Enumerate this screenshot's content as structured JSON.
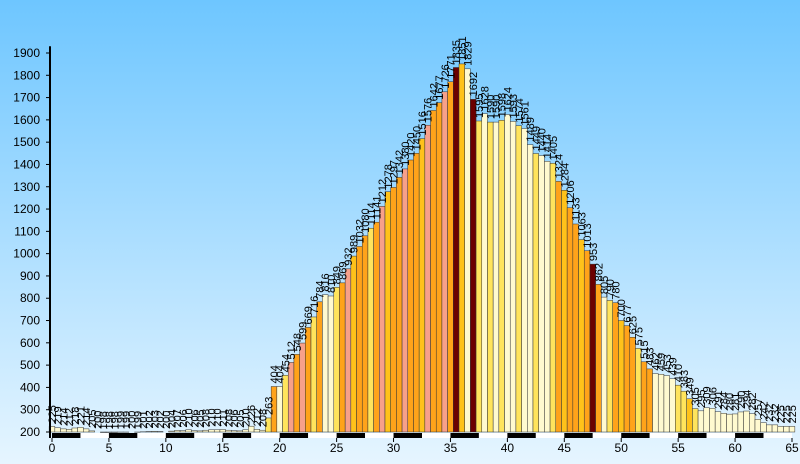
{
  "chart_data": {
    "type": "bar",
    "x": [
      0,
      0.5,
      1,
      1.5,
      2,
      2.5,
      3,
      3.5,
      4,
      4.5,
      5,
      5.5,
      6,
      6.5,
      7,
      7.5,
      8,
      8.5,
      9,
      9.5,
      10,
      10.5,
      11,
      11.5,
      12,
      12.5,
      13,
      13.5,
      14,
      14.5,
      15,
      15.5,
      16,
      16.5,
      17,
      17.5,
      18,
      18.5,
      19,
      19.5,
      20,
      20.5,
      21,
      21.5,
      22,
      22.5,
      23,
      23.5,
      24,
      24.5,
      25,
      25.5,
      26,
      26.5,
      27,
      27.5,
      28,
      28.5,
      29,
      29.5,
      30,
      30.5,
      31,
      31.5,
      32,
      32.5,
      33,
      33.5,
      34,
      34.5,
      35,
      35.5,
      36,
      36.5,
      37,
      37.5,
      38,
      38.5,
      39,
      39.5,
      40,
      40.5,
      41,
      41.5,
      42,
      42.5,
      43,
      43.5,
      44,
      44.5,
      45,
      45.5,
      46,
      46.5,
      47,
      47.5,
      48,
      48.5,
      49,
      49.5,
      50,
      50.5,
      51,
      51.5,
      52,
      52.5,
      53,
      53.5,
      54,
      54.5,
      55,
      55.5,
      56,
      56.5,
      57,
      57.5,
      58,
      58.5,
      59,
      59.5,
      60,
      60.5,
      61,
      61.5,
      62,
      62.5,
      63,
      63.5,
      64,
      64.5,
      65
    ],
    "values": [
      225,
      219,
      214,
      212,
      218,
      221,
      214,
      205,
      200,
      198,
      198,
      198,
      199,
      199,
      200,
      199,
      201,
      202,
      203,
      202,
      200,
      204,
      207,
      206,
      210,
      206,
      205,
      208,
      210,
      210,
      211,
      208,
      206,
      205,
      210,
      226,
      212,
      208,
      263,
      404,
      404,
      454,
      512,
      548,
      599,
      669,
      716,
      784,
      816,
      810,
      849,
      869,
      932,
      989,
      1032,
      1080,
      1114,
      1141,
      1212,
      1278,
      1297,
      1342,
      1380,
      1420,
      1450,
      1516,
      1576,
      1642,
      1677,
      1726,
      1771,
      1835,
      1851,
      1829,
      1692,
      1595,
      1628,
      1590,
      1590,
      1598,
      1624,
      1593,
      1574,
      1561,
      1489,
      1449,
      1440,
      1414,
      1405,
      1324,
      1284,
      1206,
      1133,
      1063,
      1013,
      953,
      862,
      805,
      790,
      780,
      700,
      677,
      625,
      575,
      515,
      483,
      462,
      459,
      453,
      439,
      410,
      383,
      349,
      305,
      295,
      309,
      306,
      291,
      284,
      280,
      281,
      290,
      294,
      282,
      257,
      242,
      232,
      232,
      225,
      225,
      225
    ],
    "colors": [
      "#fffad0",
      "#fffad0",
      "#fffad0",
      "#fffad0",
      "#fffad0",
      "#fffad0",
      "#fffad0",
      "#fffad0",
      "#fffad0",
      "#fffad0",
      "#fffad0",
      "#fffad0",
      "#fffad0",
      "#fffad0",
      "#fffad0",
      "#fffad0",
      "#fffad0",
      "#fffad0",
      "#fffad0",
      "#fffad0",
      "#fffad0",
      "#fffad0",
      "#fffad0",
      "#fffad0",
      "#fffad0",
      "#fffad0",
      "#fffad0",
      "#fffad0",
      "#fffad0",
      "#fffad0",
      "#fffad0",
      "#fffad0",
      "#fffad0",
      "#fffad0",
      "#fffad0",
      "#fffad0",
      "#fffad0",
      "#fffad0",
      "#ffe45c",
      "#ffa31a",
      "#fffad0",
      "#ffe45c",
      "#f7a08a",
      "#ffa31a",
      "#f7a08a",
      "#ffa31a",
      "#ffe45c",
      "#ffa31a",
      "#fffad0",
      "#fffad0",
      "#ffe45c",
      "#ffa31a",
      "#f7a08a",
      "#ffc21a",
      "#ffa31a",
      "#ffa31a",
      "#ffe45c",
      "#ffa31a",
      "#f7a08a",
      "#ffc21a",
      "#ffa31a",
      "#ffa31a",
      "#f7a08a",
      "#ffa31a",
      "#ffa31a",
      "#ffc21a",
      "#f7a08a",
      "#ffa31a",
      "#ffa31a",
      "#f7a08a",
      "#ffa31a",
      "#6b0000",
      "#ffc21a",
      "#fffad0",
      "#6b0000",
      "#ffe45c",
      "#fffad0",
      "#ffe45c",
      "#fffad0",
      "#ffe45c",
      "#fffad0",
      "#fffad0",
      "#ffe45c",
      "#fffad0",
      "#fffad0",
      "#ffe45c",
      "#fffad0",
      "#fffad0",
      "#ffe45c",
      "#ffa31a",
      "#ffc21a",
      "#ffa31a",
      "#ffa31a",
      "#ffc21a",
      "#ffa31a",
      "#6b0000",
      "#ffa31a",
      "#fffad0",
      "#ffe45c",
      "#ffa31a",
      "#ffc21a",
      "#ffa31a",
      "#ffa31a",
      "#ffe45c",
      "#ffa31a",
      "#ffa31a",
      "#fffad0",
      "#fffad0",
      "#fffad0",
      "#fffad0",
      "#ffe45c",
      "#ffe45c",
      "#ffc21a",
      "#ffe45c",
      "#fffad0",
      "#fffad0",
      "#fffad0",
      "#fffad0",
      "#fffad0",
      "#fffad0",
      "#fffad0",
      "#fffad0",
      "#fffad0",
      "#fffad0",
      "#fffad0",
      "#fffad0",
      "#fffad0",
      "#fffad0",
      "#fffad0",
      "#fffad0",
      "#fffad0"
    ],
    "xlim": [
      0,
      65
    ],
    "xticks": [
      0,
      5,
      10,
      15,
      20,
      25,
      30,
      35,
      40,
      45,
      50,
      55,
      60,
      65
    ],
    "ylim": [
      200,
      1930
    ],
    "yticks": [
      200,
      300,
      400,
      500,
      600,
      700,
      800,
      900,
      1000,
      1100,
      1200,
      1300,
      1400,
      1500,
      1600,
      1700,
      1800,
      1900
    ]
  }
}
